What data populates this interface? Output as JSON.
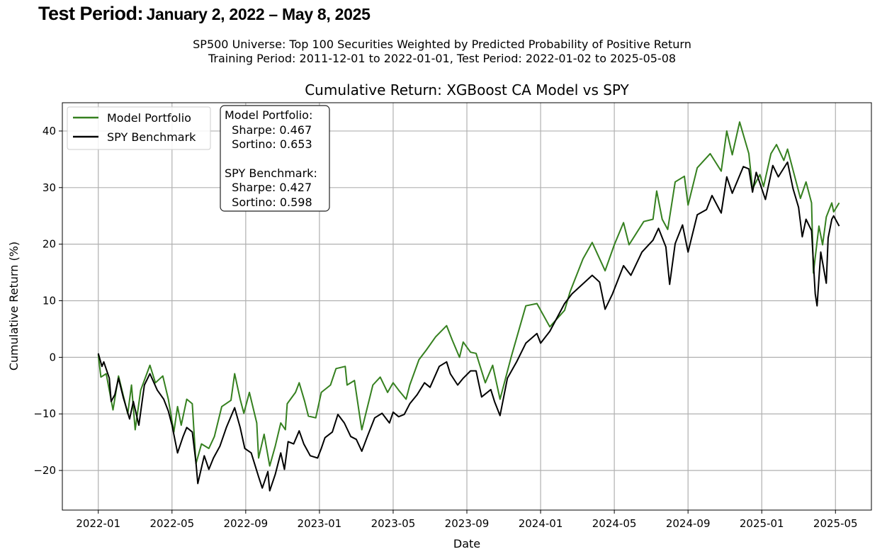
{
  "heading": {
    "label": "Test Period:",
    "range": "January 2, 2022 – May 8, 2025"
  },
  "chart_data": {
    "type": "line",
    "suptitle": [
      "SP500 Universe: Top 100 Securities Weighted by Predicted Probability of Positive Return",
      "Training Period: 2011-12-01 to 2022-01-01, Test Period: 2022-01-02 to 2025-05-08"
    ],
    "title": "Cumulative Return: XGBoost CA Model vs SPY",
    "xlabel": "Date",
    "ylabel": "Cumulative Return (%)",
    "x_unit": "months since 2022-01-01",
    "xlim": [
      -1.95,
      41.95
    ],
    "ylim": [
      -27,
      45
    ],
    "xticks": [
      0,
      4,
      8,
      12,
      16,
      20,
      24,
      28,
      32,
      36,
      40
    ],
    "xtick_labels": [
      "2022-01",
      "2022-05",
      "2022-09",
      "2023-01",
      "2023-05",
      "2023-09",
      "2024-01",
      "2024-05",
      "2024-09",
      "2025-01",
      "2025-05"
    ],
    "yticks": [
      -20,
      -10,
      0,
      10,
      20,
      30,
      40
    ],
    "ytick_labels": [
      "−20",
      "−10",
      "0",
      "10",
      "20",
      "30",
      "40"
    ],
    "grid": true,
    "legend_position": "top-left",
    "series": [
      {
        "name": "Model Portfolio",
        "color": "#35801f",
        "points": [
          [
            0,
            0.5
          ],
          [
            0.14,
            -3.5
          ],
          [
            0.43,
            -2.9
          ],
          [
            0.8,
            -9.3
          ],
          [
            1.1,
            -3.3
          ],
          [
            1.6,
            -10
          ],
          [
            1.8,
            -4.9
          ],
          [
            2,
            -12.8
          ],
          [
            2.3,
            -5.8
          ],
          [
            2.8,
            -1.4
          ],
          [
            3.1,
            -4.5
          ],
          [
            3.5,
            -3.3
          ],
          [
            3.8,
            -7.4
          ],
          [
            4.1,
            -13.2
          ],
          [
            4.3,
            -8.7
          ],
          [
            4.5,
            -12
          ],
          [
            4.8,
            -7.4
          ],
          [
            5.1,
            -8.2
          ],
          [
            5.3,
            -18.8
          ],
          [
            5.6,
            -15.3
          ],
          [
            6,
            -16.1
          ],
          [
            6.3,
            -14
          ],
          [
            6.7,
            -8.7
          ],
          [
            7.2,
            -7.6
          ],
          [
            7.4,
            -2.9
          ],
          [
            7.7,
            -7.4
          ],
          [
            7.9,
            -9.9
          ],
          [
            8.2,
            -6.2
          ],
          [
            8.6,
            -11.6
          ],
          [
            8.7,
            -17.8
          ],
          [
            9,
            -13.6
          ],
          [
            9.3,
            -19.2
          ],
          [
            9.6,
            -15.7
          ],
          [
            9.9,
            -11.6
          ],
          [
            10.15,
            -12.8
          ],
          [
            10.25,
            -8.2
          ],
          [
            10.7,
            -6.2
          ],
          [
            10.9,
            -4.5
          ],
          [
            11.2,
            -7.8
          ],
          [
            11.4,
            -10.4
          ],
          [
            11.8,
            -10.7
          ],
          [
            12.1,
            -6.2
          ],
          [
            12.6,
            -4.9
          ],
          [
            12.9,
            -2
          ],
          [
            13.4,
            -1.6
          ],
          [
            13.5,
            -4.9
          ],
          [
            13.9,
            -4.1
          ],
          [
            14.2,
            -10.7
          ],
          [
            14.3,
            -12.8
          ],
          [
            14.9,
            -4.9
          ],
          [
            15.3,
            -3.5
          ],
          [
            15.7,
            -6.2
          ],
          [
            16,
            -4.5
          ],
          [
            16.3,
            -5.8
          ],
          [
            16.7,
            -7.4
          ],
          [
            16.9,
            -4.9
          ],
          [
            17.4,
            -0.4
          ],
          [
            17.8,
            1.3
          ],
          [
            18.3,
            3.6
          ],
          [
            18.9,
            5.6
          ],
          [
            19.2,
            3.1
          ],
          [
            19.6,
            0
          ],
          [
            19.8,
            2.7
          ],
          [
            20.2,
            0.9
          ],
          [
            20.5,
            0.7
          ],
          [
            21,
            -4.5
          ],
          [
            21.4,
            -1.4
          ],
          [
            21.8,
            -7.4
          ],
          [
            22.4,
            0
          ],
          [
            23.2,
            9.1
          ],
          [
            23.8,
            9.5
          ],
          [
            24.5,
            5.4
          ],
          [
            25.3,
            8.3
          ],
          [
            25.6,
            11.6
          ],
          [
            26.3,
            17.4
          ],
          [
            26.8,
            20.3
          ],
          [
            27.5,
            15.3
          ],
          [
            28,
            19.9
          ],
          [
            28.5,
            23.8
          ],
          [
            28.8,
            19.9
          ],
          [
            29.6,
            24
          ],
          [
            30.1,
            24.4
          ],
          [
            30.3,
            29.4
          ],
          [
            30.6,
            24.4
          ],
          [
            30.9,
            22.6
          ],
          [
            31.3,
            31
          ],
          [
            31.8,
            32
          ],
          [
            32,
            26.9
          ],
          [
            32.5,
            33.5
          ],
          [
            33.2,
            36
          ],
          [
            33.8,
            32.9
          ],
          [
            34.1,
            40
          ],
          [
            34.4,
            35.8
          ],
          [
            34.8,
            41.6
          ],
          [
            35.3,
            36
          ],
          [
            35.5,
            29.8
          ],
          [
            35.9,
            32.3
          ],
          [
            36.1,
            30.2
          ],
          [
            36.5,
            36
          ],
          [
            36.8,
            37.6
          ],
          [
            37.2,
            34.8
          ],
          [
            37.4,
            36.8
          ],
          [
            37.9,
            30.6
          ],
          [
            38.1,
            28.1
          ],
          [
            38.4,
            31
          ],
          [
            38.7,
            27.3
          ],
          [
            38.8,
            14.9
          ],
          [
            39.1,
            23.2
          ],
          [
            39.3,
            19.9
          ],
          [
            39.5,
            24.8
          ],
          [
            39.8,
            27.3
          ],
          [
            39.9,
            25.7
          ],
          [
            40.2,
            27.3
          ]
        ]
      },
      {
        "name": "SPY Benchmark",
        "color": "#000000",
        "points": [
          [
            0,
            0.7
          ],
          [
            0.2,
            -1.6
          ],
          [
            0.3,
            -0.8
          ],
          [
            0.6,
            -3.7
          ],
          [
            0.7,
            -7.8
          ],
          [
            0.9,
            -6.6
          ],
          [
            1.1,
            -3.7
          ],
          [
            1.35,
            -7
          ],
          [
            1.7,
            -10.9
          ],
          [
            1.9,
            -7.8
          ],
          [
            2.2,
            -12
          ],
          [
            2.5,
            -4.9
          ],
          [
            2.8,
            -2.9
          ],
          [
            3.2,
            -5.8
          ],
          [
            3.55,
            -7.4
          ],
          [
            3.8,
            -9.5
          ],
          [
            4,
            -12
          ],
          [
            4.3,
            -16.9
          ],
          [
            4.6,
            -14
          ],
          [
            4.8,
            -12.4
          ],
          [
            5.1,
            -13.2
          ],
          [
            5.3,
            -18.6
          ],
          [
            5.4,
            -22.3
          ],
          [
            5.75,
            -17.4
          ],
          [
            6,
            -19.8
          ],
          [
            6.25,
            -17.8
          ],
          [
            6.6,
            -15.7
          ],
          [
            6.95,
            -12.4
          ],
          [
            7.4,
            -8.9
          ],
          [
            7.7,
            -12.4
          ],
          [
            7.95,
            -16.1
          ],
          [
            8.3,
            -16.9
          ],
          [
            8.7,
            -21.1
          ],
          [
            8.9,
            -23.1
          ],
          [
            9.2,
            -20.2
          ],
          [
            9.3,
            -23.6
          ],
          [
            9.6,
            -20.7
          ],
          [
            9.9,
            -16.9
          ],
          [
            10.1,
            -19.8
          ],
          [
            10.3,
            -14.9
          ],
          [
            10.6,
            -15.3
          ],
          [
            10.9,
            -13
          ],
          [
            11.15,
            -15.3
          ],
          [
            11.5,
            -17.4
          ],
          [
            11.9,
            -17.8
          ],
          [
            12.1,
            -16.1
          ],
          [
            12.3,
            -14.2
          ],
          [
            12.7,
            -13.2
          ],
          [
            13,
            -10.1
          ],
          [
            13.35,
            -11.6
          ],
          [
            13.7,
            -14
          ],
          [
            14,
            -14.5
          ],
          [
            14.3,
            -16.6
          ],
          [
            14.6,
            -14
          ],
          [
            15,
            -10.7
          ],
          [
            15.4,
            -9.9
          ],
          [
            15.8,
            -11.6
          ],
          [
            16,
            -9.7
          ],
          [
            16.3,
            -10.5
          ],
          [
            16.6,
            -10.1
          ],
          [
            16.9,
            -8.2
          ],
          [
            17.3,
            -6.6
          ],
          [
            17.7,
            -4.5
          ],
          [
            18,
            -5.3
          ],
          [
            18.5,
            -1.6
          ],
          [
            18.9,
            -0.8
          ],
          [
            19.1,
            -2.9
          ],
          [
            19.5,
            -4.9
          ],
          [
            19.8,
            -3.7
          ],
          [
            20.2,
            -2.4
          ],
          [
            20.5,
            -2.4
          ],
          [
            20.8,
            -7
          ],
          [
            21.3,
            -5.7
          ],
          [
            21.5,
            -7.8
          ],
          [
            21.8,
            -10.3
          ],
          [
            22.2,
            -3.7
          ],
          [
            22.7,
            -0.8
          ],
          [
            23.2,
            2.5
          ],
          [
            23.8,
            4.2
          ],
          [
            24,
            2.5
          ],
          [
            24.5,
            4.6
          ],
          [
            25.3,
            9.5
          ],
          [
            25.7,
            11.2
          ],
          [
            26.8,
            14.5
          ],
          [
            27.2,
            13.3
          ],
          [
            27.5,
            8.5
          ],
          [
            27.9,
            11.2
          ],
          [
            28.5,
            16.2
          ],
          [
            28.9,
            14.5
          ],
          [
            29.5,
            18.6
          ],
          [
            30.1,
            20.7
          ],
          [
            30.4,
            22.8
          ],
          [
            30.8,
            19.5
          ],
          [
            31,
            12.9
          ],
          [
            31.3,
            20.1
          ],
          [
            31.7,
            23.4
          ],
          [
            32,
            18.6
          ],
          [
            32.5,
            25.2
          ],
          [
            33,
            26.1
          ],
          [
            33.3,
            28.6
          ],
          [
            33.8,
            25.5
          ],
          [
            34.1,
            31.9
          ],
          [
            34.4,
            29
          ],
          [
            35,
            33.7
          ],
          [
            35.3,
            33.3
          ],
          [
            35.5,
            29.2
          ],
          [
            35.7,
            32.7
          ],
          [
            36.2,
            27.9
          ],
          [
            36.6,
            33.9
          ],
          [
            36.9,
            31.9
          ],
          [
            37.4,
            34.5
          ],
          [
            37.7,
            29.8
          ],
          [
            38,
            26.5
          ],
          [
            38.2,
            21.3
          ],
          [
            38.4,
            24.4
          ],
          [
            38.7,
            22.4
          ],
          [
            38.9,
            11.2
          ],
          [
            39,
            9.1
          ],
          [
            39.2,
            18.6
          ],
          [
            39.5,
            13.1
          ],
          [
            39.6,
            21.1
          ],
          [
            39.8,
            24.4
          ],
          [
            39.9,
            25
          ],
          [
            40.2,
            23.2
          ]
        ]
      }
    ],
    "annotation": {
      "lines": [
        "Model Portfolio:",
        "  Sharpe: 0.467",
        "  Sortino: 0.653",
        "",
        "SPY Benchmark:",
        "  Sharpe: 0.427",
        "  Sortino: 0.598"
      ]
    }
  }
}
